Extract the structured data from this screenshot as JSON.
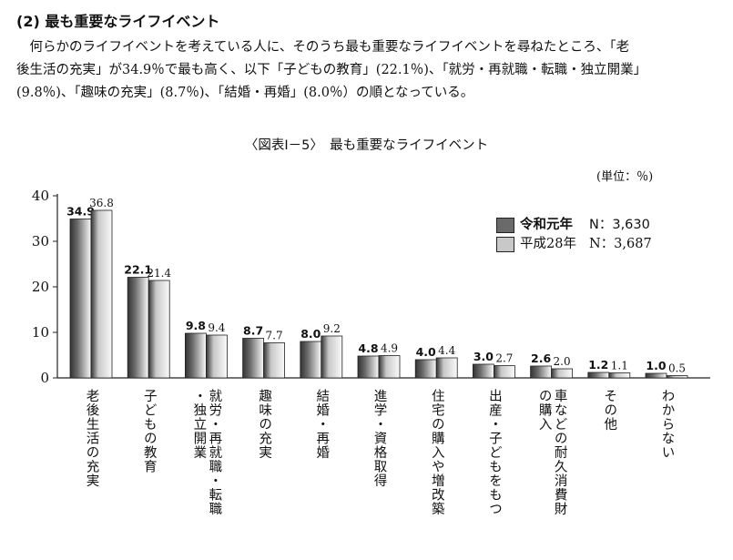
{
  "section": {
    "heading": "(2)  最も重要なライフイベント",
    "paragraph_lines": [
      "　何らかのライフイベントを考えている人に、そのうち最も重要なライフイベントを尋ねたところ、「老",
      "後生活の充実」が34.9％で最も高く、以下「子どもの教育」(22.1％)、「就労・再就職・転職・独立開業」",
      "(9.8％)、「趣味の充実」(8.7％)、「結婚・再婚」(8.0％）の順となっている。"
    ]
  },
  "colors": {
    "series_2019": "#6a6a6a",
    "series_2016": "#c8c8c8",
    "axis": "#222222"
  },
  "chart_data": {
    "type": "bar",
    "title": "〈図表Ⅰ－5〉　最も重要なライフイベント",
    "unit": "(単位：％)",
    "ylim": [
      0,
      40
    ],
    "yticks": [
      0,
      10,
      20,
      30,
      40
    ],
    "grid": false,
    "legend_position": "top-right",
    "categories": [
      [
        "老後生活の充実"
      ],
      [
        "子どもの教育"
      ],
      [
        "就労・再就職・転職",
        "・独立開業"
      ],
      [
        "趣味の充実"
      ],
      [
        "結婚・再婚"
      ],
      [
        "進学・資格取得"
      ],
      [
        "住宅の購入や増改築"
      ],
      [
        "出産・子どもをもつ"
      ],
      [
        "車などの耐久消費財",
        "の購入"
      ],
      [
        "その他"
      ],
      [
        "わからない"
      ]
    ],
    "series": [
      {
        "name": "令和元年",
        "n_label": "N：3,630",
        "values": [
          34.9,
          22.1,
          9.8,
          8.7,
          8.0,
          4.8,
          4.0,
          3.0,
          2.6,
          1.2,
          1.0
        ],
        "labels": [
          "34.9",
          "22.1",
          "9.8",
          "8.7",
          "8.0",
          "4.8",
          "4.0",
          "3.0",
          "2.6",
          "1.2",
          "1.0"
        ]
      },
      {
        "name": "平成28年",
        "n_label": "N：3,687",
        "values": [
          36.8,
          21.4,
          9.4,
          7.7,
          9.2,
          4.9,
          4.4,
          2.7,
          2.0,
          1.1,
          0.5
        ],
        "labels": [
          "36.8",
          "21.4",
          "9.4",
          "7.7",
          "9.2",
          "4.9",
          "4.4",
          "2.7",
          "2.0",
          "1.1",
          "0.5"
        ]
      }
    ]
  }
}
